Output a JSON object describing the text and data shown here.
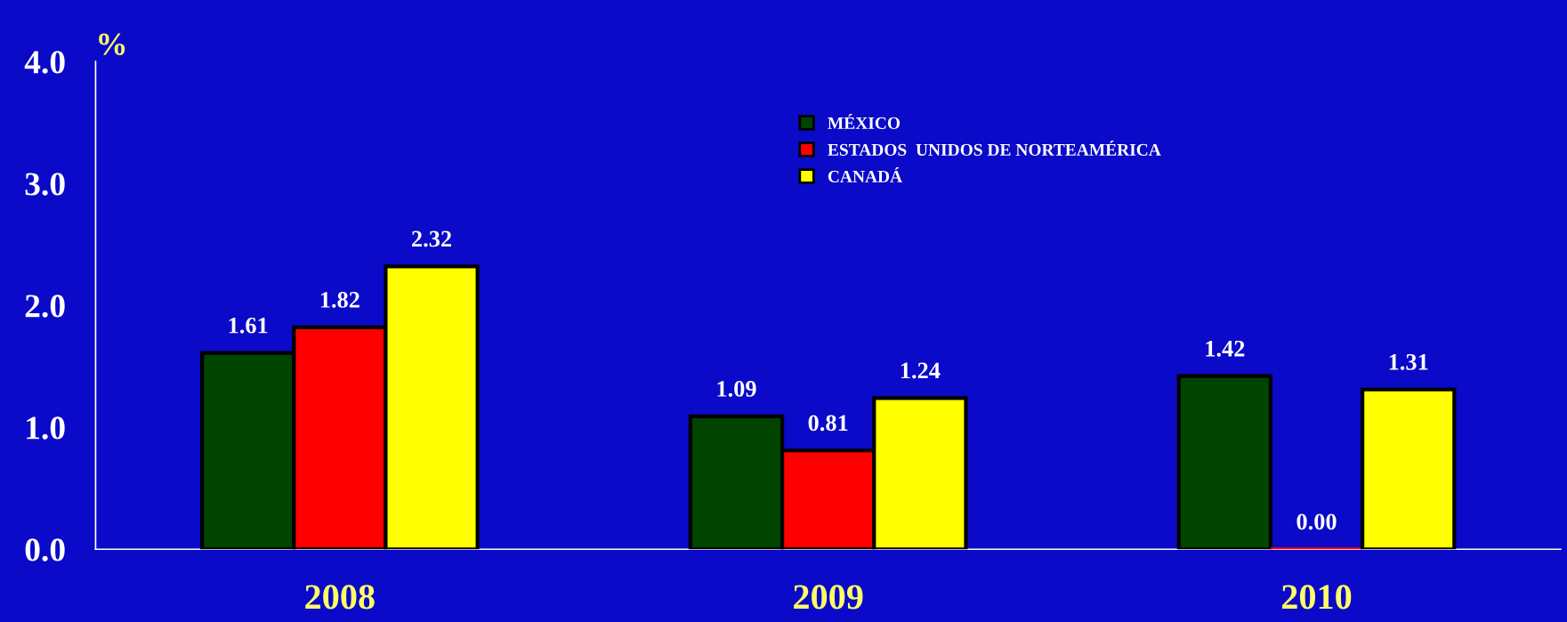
{
  "chart_data": {
    "type": "bar",
    "ylabel": "%",
    "categories": [
      "2008",
      "2009",
      "2010"
    ],
    "series": [
      {
        "name": "MÉXICO",
        "color": "#004400",
        "values": [
          1.61,
          1.09,
          1.42
        ]
      },
      {
        "name": "ESTADOS  UNIDOS DE NORTEAMÉRICA",
        "color": "#ff0000",
        "values": [
          1.82,
          0.81,
          0.0
        ],
        "value_labels": [
          "1.82",
          "0.81",
          "0.00"
        ]
      },
      {
        "name": "CANADÁ",
        "color": "#ffff00",
        "values": [
          2.32,
          1.24,
          1.31
        ]
      }
    ],
    "ylim": [
      0,
      4
    ],
    "yticks": [
      {
        "value": 0,
        "label": "0.0"
      },
      {
        "value": 1,
        "label": "1.0"
      },
      {
        "value": 2,
        "label": "2.0"
      },
      {
        "value": 3,
        "label": "3.0"
      },
      {
        "value": 4,
        "label": "4.0"
      }
    ],
    "data_labels": true,
    "legend": "top right",
    "grid": false
  }
}
